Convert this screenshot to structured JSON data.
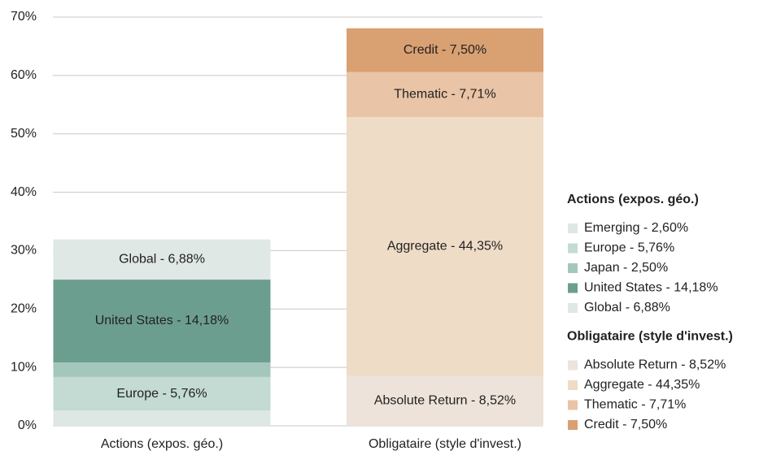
{
  "chart_data": {
    "type": "stacked_bar",
    "categories": [
      "Actions (expos. géo.)",
      "Obligataire (style d'invest.)"
    ],
    "ylim": [
      0,
      70
    ],
    "yticks": [
      {
        "value": 0,
        "label": "0%"
      },
      {
        "value": 10,
        "label": "10%"
      },
      {
        "value": 20,
        "label": "20%"
      },
      {
        "value": 30,
        "label": "30%"
      },
      {
        "value": 40,
        "label": "40%"
      },
      {
        "value": 50,
        "label": "50%"
      },
      {
        "value": 60,
        "label": "60%"
      },
      {
        "value": 70,
        "label": "70%"
      }
    ],
    "grid": true,
    "legend": "right",
    "series": [
      {
        "name": "Emerging - 2,60%",
        "color": "#dde8e4",
        "values": [
          2.6,
          null
        ],
        "labeled": false
      },
      {
        "name": "Europe - 5,76%",
        "color": "#c3dbd3",
        "values": [
          5.76,
          null
        ],
        "labeled": true
      },
      {
        "name": "Japan - 2,50%",
        "color": "#a3c8bb",
        "values": [
          2.5,
          null
        ],
        "labeled": false
      },
      {
        "name": "United States - 14,18%",
        "color": "#6c9e8f",
        "values": [
          14.18,
          null
        ],
        "labeled": true
      },
      {
        "name": "Global - 6,88%",
        "color": "#dfe8e5",
        "values": [
          6.88,
          null
        ],
        "labeled": true
      },
      {
        "name": "Absolute Return - 8,52%",
        "color": "#ede3da",
        "values": [
          null,
          8.52
        ],
        "labeled": true
      },
      {
        "name": "Aggregate - 44,35%",
        "color": "#efdcc7",
        "values": [
          null,
          44.35
        ],
        "labeled": true
      },
      {
        "name": "Thematic - 7,71%",
        "color": "#eac4a6",
        "values": [
          null,
          7.71
        ],
        "labeled": true
      },
      {
        "name": "Credit - 7,50%",
        "color": "#d9a071",
        "values": [
          null,
          7.5
        ],
        "labeled": true
      }
    ]
  }
}
